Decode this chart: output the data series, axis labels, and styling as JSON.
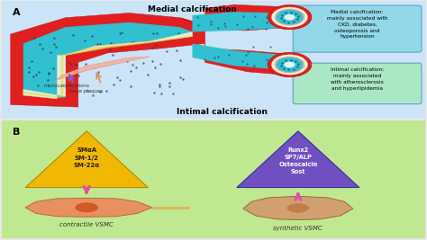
{
  "fig_width": 4.74,
  "fig_height": 2.67,
  "dpi": 100,
  "panel_a": {
    "bg_color_top": "#cce4f7",
    "bg_color_bot": "#ddeeff",
    "title_top": "Medial calcification",
    "title_bottom": "Intimal calcification",
    "label": "A",
    "box1_text": "Medial calcification:\nmainly associated with\nCKD, diabetes,\nosteoporosis and\nhypertension",
    "box1_color": "#8dd8e8",
    "box2_text": "Intimal calcification:\nmainly associated\nwith atherosclerosis\nand hyperlipidemia",
    "box2_color": "#a8e8c0",
    "label_micro": "microcalcifications",
    "label_plaque": "large plaques",
    "vessel_red": "#e02020",
    "vessel_dark": "#c01010",
    "lumen_teal": "#30c0d0",
    "lumen_light": "#70d8e8",
    "intima_white": "#f8f8e0",
    "intima_yellow": "#e8d850",
    "intima_pink": "#f0a0a0",
    "dot_color": "#204060"
  },
  "panel_b": {
    "bg_color_top": "#c0e890",
    "bg_color_bot": "#d8f0a0",
    "label": "B",
    "tri1_color": "#f0b800",
    "tri1_text": "SMαA\nSM-1/2\nSM-22α",
    "tri2_color": "#7050c0",
    "tri2_text": "Runx2\nSP7/ALP\nOsteocalcin\nSost",
    "label1": "contractile VSMC",
    "label2": "synthetic VSMC",
    "arrow_color": "#e050a0",
    "vsmc1_body": "#e89060",
    "vsmc1_nucleus": "#d05020",
    "vsmc1_tail": "#d8b860",
    "vsmc2_body": "#d0a070",
    "vsmc2_nucleus": "#c07840"
  }
}
